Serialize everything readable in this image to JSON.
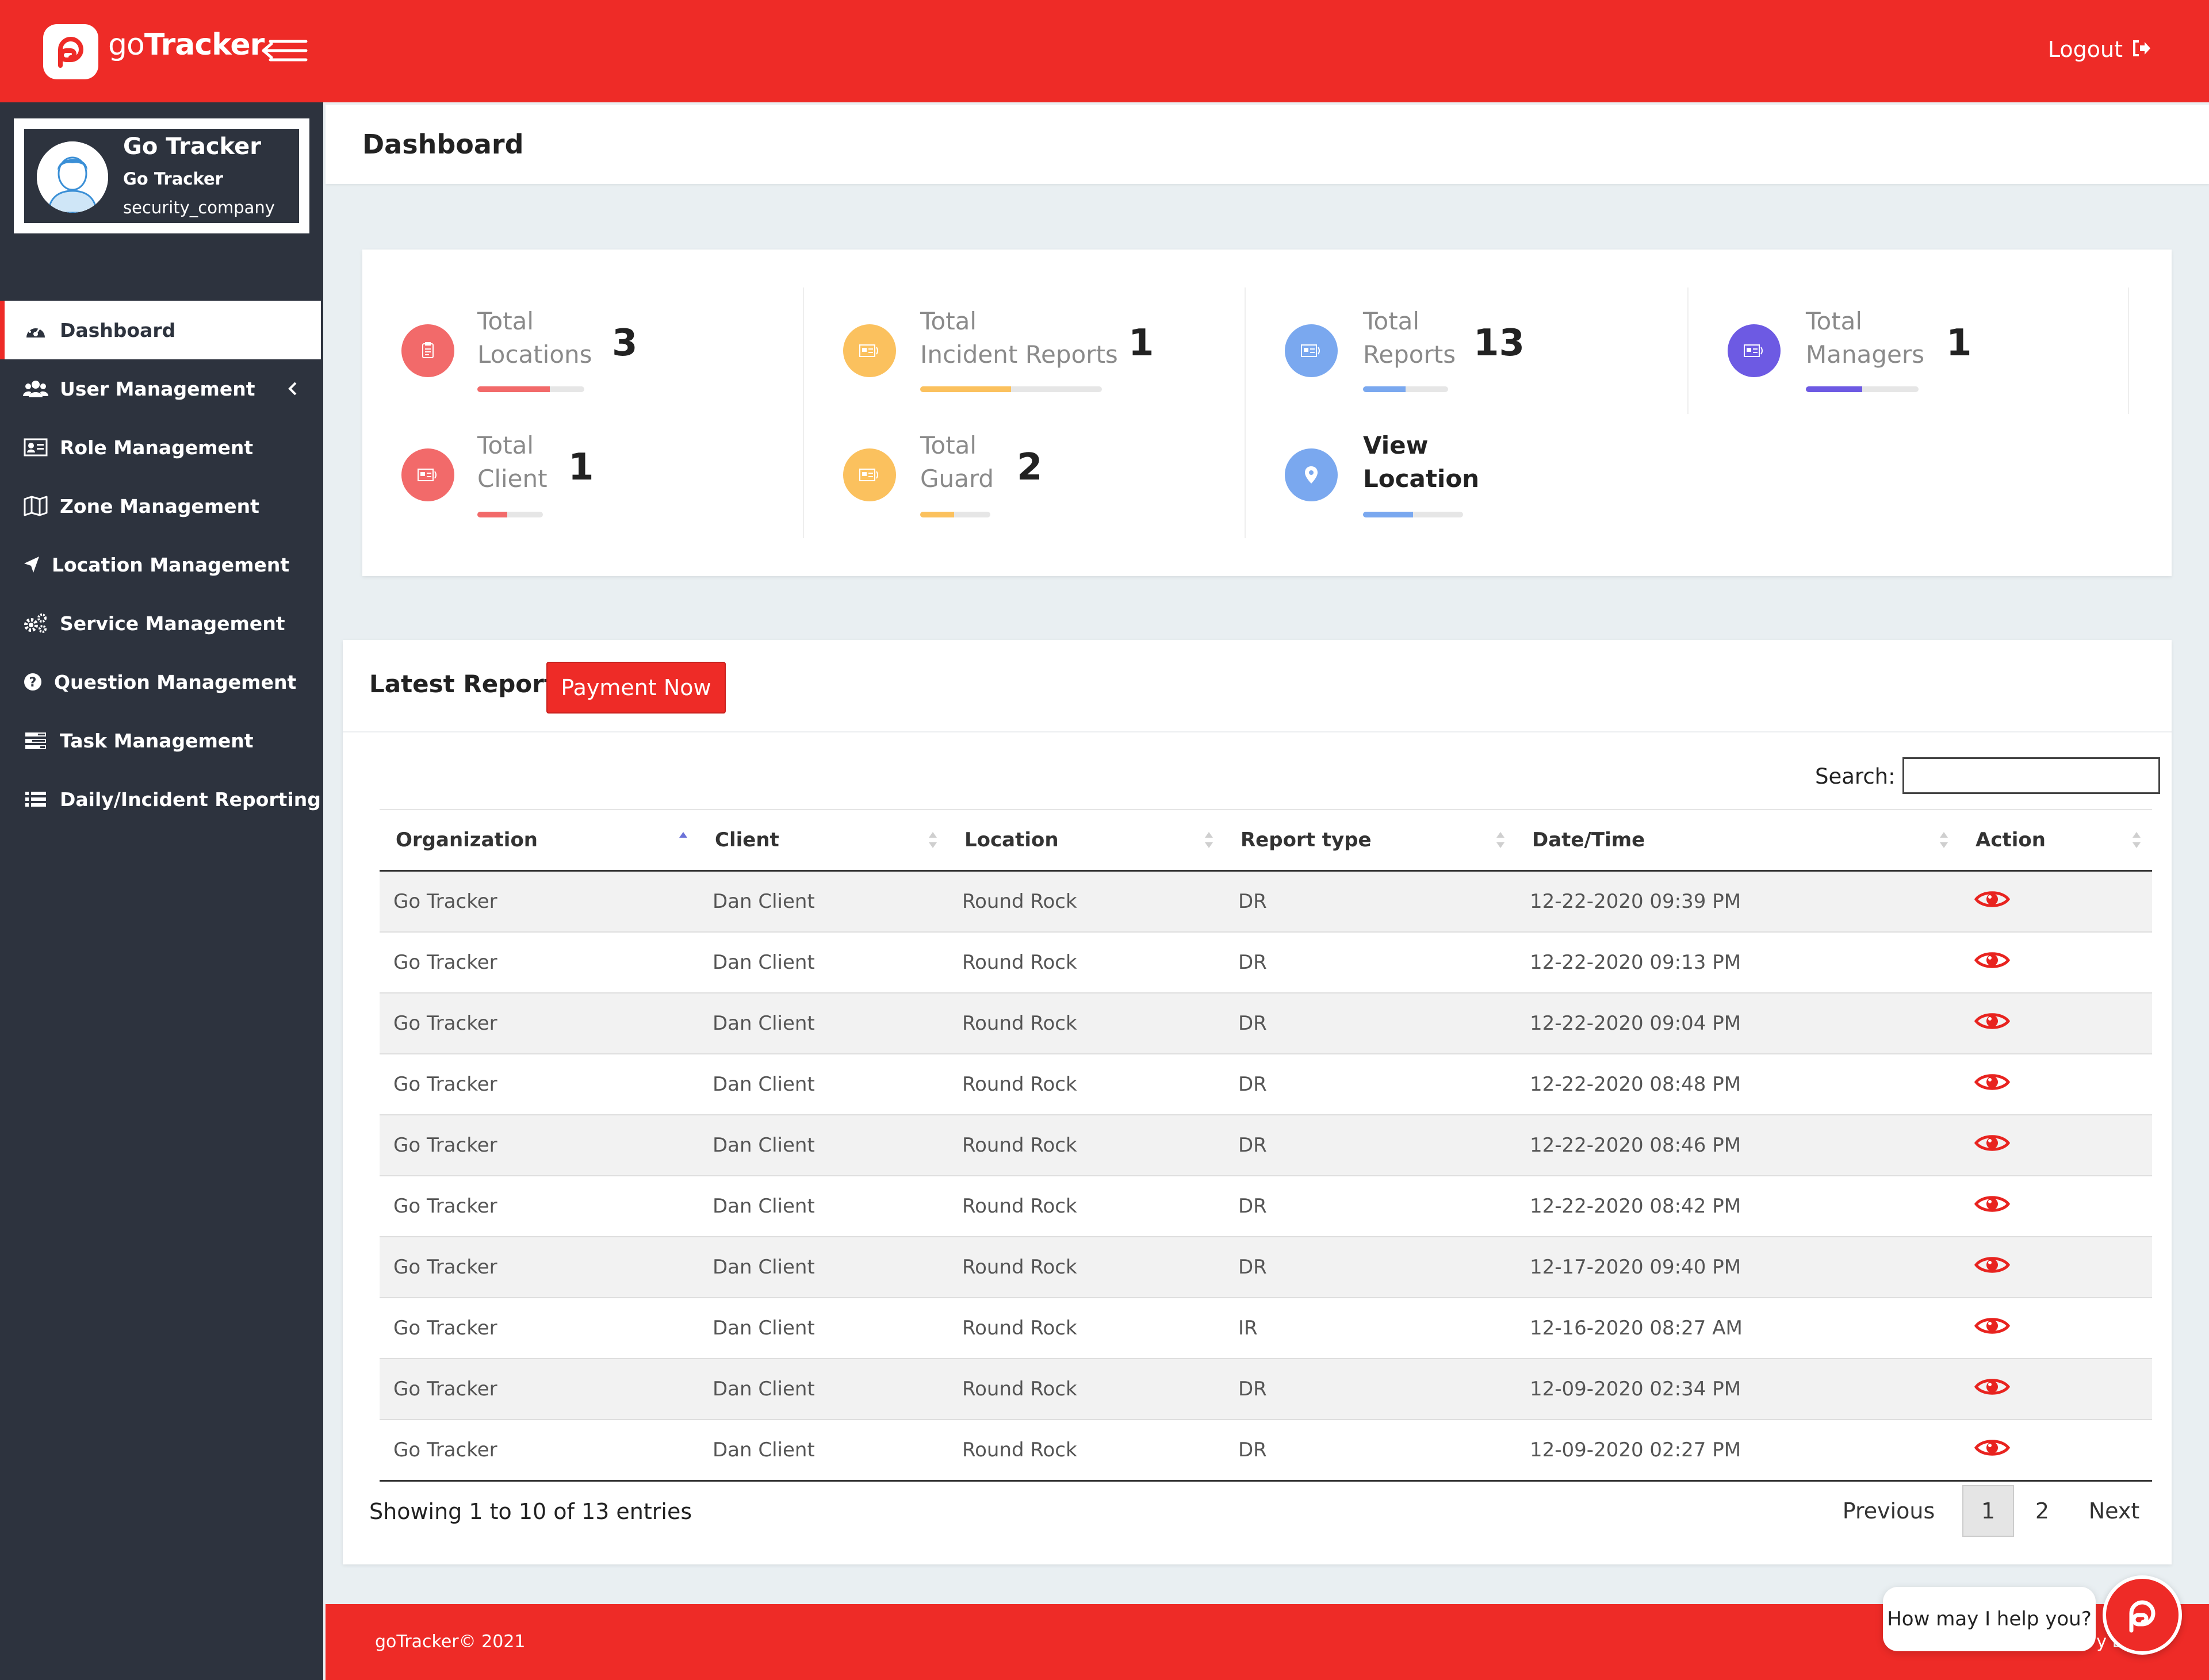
{
  "app": {
    "brand_prefix": "go",
    "brand_suffix": "Tracker",
    "logout_label": "Logout",
    "accent_color": "#ee2b27",
    "sidebar_color": "#2d333e"
  },
  "profile": {
    "name": "Go Tracker",
    "subtitle": "Go Tracker",
    "role": "security_company"
  },
  "sidebar": {
    "items": [
      {
        "label": "Dashboard",
        "icon": "dashboard-gauge-icon",
        "active": true
      },
      {
        "label": "User Management",
        "icon": "users-icon",
        "has_children": true
      },
      {
        "label": "Role Management",
        "icon": "id-card-icon"
      },
      {
        "label": "Zone Management",
        "icon": "map-icon"
      },
      {
        "label": "Location Management",
        "icon": "location-arrow-icon"
      },
      {
        "label": "Service Management",
        "icon": "cogs-icon"
      },
      {
        "label": "Question Management",
        "icon": "question-circle-icon"
      },
      {
        "label": "Task Management",
        "icon": "tasks-icon"
      },
      {
        "label": "Daily/Incident Reporting",
        "icon": "list-icon"
      }
    ]
  },
  "page": {
    "title": "Dashboard"
  },
  "stats": [
    {
      "line1": "Total",
      "line2": "Locations",
      "value": "3",
      "color": "#f26a6a",
      "progress": 0.68
    },
    {
      "line1": "Total",
      "line2": "Incident Reports",
      "value": "1",
      "color": "#fbc15e",
      "progress": 0.5
    },
    {
      "line1": "Total",
      "line2": "Reports",
      "value": "13",
      "color": "#7aa8ef",
      "progress": 0.5
    },
    {
      "line1": "Total",
      "line2": "Managers",
      "value": "1",
      "color": "#6d5ae3",
      "progress": 0.5
    },
    {
      "line1": "Total",
      "line2": "Client",
      "value": "1",
      "color": "#f26a6a",
      "progress": 0.46
    },
    {
      "line1": "Total",
      "line2": "Guard",
      "value": "2",
      "color": "#fbc15e",
      "progress": 0.48
    },
    {
      "line1": "View",
      "line2": "Location",
      "value": "",
      "color": "#7aa8ef",
      "progress": 0.5
    }
  ],
  "reports": {
    "title": "Latest Reports",
    "payment_button": "Payment Now",
    "search_label": "Search:",
    "search_value": "",
    "columns": [
      "Organization",
      "Client",
      "Location",
      "Report type",
      "Date/Time",
      "Action"
    ],
    "rows": [
      [
        "Go Tracker",
        "Dan Client",
        "Round Rock",
        "DR",
        "12-22-2020 09:39 PM"
      ],
      [
        "Go Tracker",
        "Dan Client",
        "Round Rock",
        "DR",
        "12-22-2020 09:13 PM"
      ],
      [
        "Go Tracker",
        "Dan Client",
        "Round Rock",
        "DR",
        "12-22-2020 09:04 PM"
      ],
      [
        "Go Tracker",
        "Dan Client",
        "Round Rock",
        "DR",
        "12-22-2020 08:48 PM"
      ],
      [
        "Go Tracker",
        "Dan Client",
        "Round Rock",
        "DR",
        "12-22-2020 08:46 PM"
      ],
      [
        "Go Tracker",
        "Dan Client",
        "Round Rock",
        "DR",
        "12-22-2020 08:42 PM"
      ],
      [
        "Go Tracker",
        "Dan Client",
        "Round Rock",
        "DR",
        "12-17-2020 09:40 PM"
      ],
      [
        "Go Tracker",
        "Dan Client",
        "Round Rock",
        "IR",
        "12-16-2020 08:27 AM"
      ],
      [
        "Go Tracker",
        "Dan Client",
        "Round Rock",
        "DR",
        "12-09-2020 02:34 PM"
      ],
      [
        "Go Tracker",
        "Dan Client",
        "Round Rock",
        "DR",
        "12-09-2020 02:27 PM"
      ]
    ],
    "info": "Showing 1 to 10 of 13 entries",
    "pagination": {
      "previous": "Previous",
      "pages": [
        "1",
        "2"
      ],
      "current": "1",
      "next": "Next"
    }
  },
  "footer": {
    "copyright": "goTracker© 2021",
    "right_text": "y E."
  },
  "chat": {
    "prompt": "How may I help you?"
  }
}
